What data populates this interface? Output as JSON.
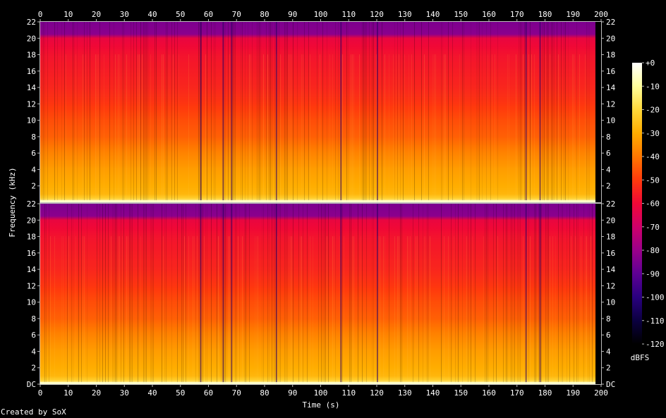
{
  "chart_data": {
    "type": "heatmap",
    "xlabel": "Time (s)",
    "ylabel": "Frequency (kHz)",
    "x_ticks": [
      "0",
      "10",
      "20",
      "30",
      "40",
      "50",
      "60",
      "70",
      "80",
      "90",
      "100",
      "110",
      "120",
      "130",
      "140",
      "150",
      "160",
      "170",
      "180",
      "190",
      "200"
    ],
    "xlim": [
      0,
      200
    ],
    "y_ticks_upper": [
      "2",
      "4",
      "6",
      "8",
      "10",
      "12",
      "14",
      "16",
      "18",
      "20",
      "22"
    ],
    "y_ticks_lower": [
      "DC",
      "2",
      "4",
      "6",
      "8",
      "10",
      "12",
      "14",
      "16",
      "18",
      "20",
      "22"
    ],
    "ylim": [
      0,
      22
    ],
    "duration_s": 198,
    "channels": [
      {
        "panel": "upper",
        "ylim": [
          0,
          22
        ]
      },
      {
        "panel": "lower",
        "ylim": [
          0,
          22
        ]
      }
    ],
    "level_profile": {
      "freq_khz": [
        0,
        0.3,
        1,
        2,
        4,
        6,
        8,
        10,
        12,
        14,
        16,
        18,
        20,
        20.2,
        22
      ],
      "dbfs": [
        -5,
        -20,
        -28,
        -30,
        -33,
        -38,
        -44,
        -47,
        -51,
        -54,
        -56,
        -58,
        -62,
        -82,
        -85
      ]
    },
    "quiet_moments_s": [
      57,
      65,
      68,
      84,
      107,
      120,
      173,
      178
    ],
    "colorbar": {
      "label": "dBFS",
      "ticks": [
        "+0",
        "-10",
        "-20",
        "-30",
        "-40",
        "-50",
        "-60",
        "-70",
        "-80",
        "-90",
        "-100",
        "-110",
        "-120"
      ],
      "range": [
        -120,
        0
      ],
      "colors": [
        "#000000",
        "#0b0040",
        "#2a0080",
        "#5e0094",
        "#9a008a",
        "#cf006a",
        "#f00836",
        "#ff3a0c",
        "#ff7800",
        "#ffad00",
        "#ffd83a",
        "#ffff9c",
        "#ffffff"
      ]
    }
  },
  "footer": {
    "credit": "Created by SoX"
  }
}
